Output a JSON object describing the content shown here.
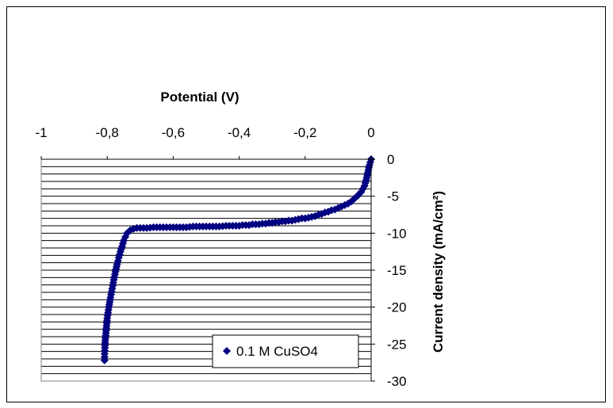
{
  "chart_data": {
    "type": "scatter",
    "title": "",
    "xlabel": "Potential (V)",
    "ylabel": "Current density (mA/cm²)",
    "xlim": [
      -1,
      0
    ],
    "ylim": [
      -30,
      0
    ],
    "x_ticks": [
      "-1",
      "-0,8",
      "-0,6",
      "-0,4",
      "-0,2",
      "0"
    ],
    "y_ticks": [
      "0",
      "-5",
      "-10",
      "-15",
      "-20",
      "-25",
      "-30"
    ],
    "grid": "horizontal",
    "legend_position": "bottom-right",
    "marker_color": "#000080",
    "series": [
      {
        "name": "0.1 M CuSO4",
        "marker": "diamond",
        "points": [
          [
            0.0,
            0.0
          ],
          [
            -0.005,
            -0.8
          ],
          [
            -0.01,
            -1.8
          ],
          [
            -0.015,
            -2.8
          ],
          [
            -0.02,
            -3.6
          ],
          [
            -0.03,
            -4.4
          ],
          [
            -0.04,
            -4.9
          ],
          [
            -0.05,
            -5.3
          ],
          [
            -0.06,
            -5.7
          ],
          [
            -0.07,
            -6.0
          ],
          [
            -0.08,
            -6.2
          ],
          [
            -0.09,
            -6.4
          ],
          [
            -0.1,
            -6.6
          ],
          [
            -0.11,
            -6.8
          ],
          [
            -0.12,
            -6.9
          ],
          [
            -0.13,
            -7.1
          ],
          [
            -0.14,
            -7.2
          ],
          [
            -0.15,
            -7.4
          ],
          [
            -0.16,
            -7.5
          ],
          [
            -0.17,
            -7.7
          ],
          [
            -0.18,
            -7.8
          ],
          [
            -0.19,
            -7.9
          ],
          [
            -0.2,
            -8.0
          ],
          [
            -0.21,
            -8.0
          ],
          [
            -0.22,
            -8.1
          ],
          [
            -0.23,
            -8.2
          ],
          [
            -0.24,
            -8.3
          ],
          [
            -0.25,
            -8.3
          ],
          [
            -0.26,
            -8.4
          ],
          [
            -0.27,
            -8.4
          ],
          [
            -0.28,
            -8.5
          ],
          [
            -0.29,
            -8.5
          ],
          [
            -0.3,
            -8.6
          ],
          [
            -0.31,
            -8.6
          ],
          [
            -0.32,
            -8.7
          ],
          [
            -0.33,
            -8.7
          ],
          [
            -0.34,
            -8.8
          ],
          [
            -0.35,
            -8.8
          ],
          [
            -0.36,
            -8.8
          ],
          [
            -0.37,
            -8.9
          ],
          [
            -0.38,
            -8.9
          ],
          [
            -0.39,
            -8.9
          ],
          [
            -0.4,
            -9.0
          ],
          [
            -0.42,
            -9.0
          ],
          [
            -0.44,
            -9.0
          ],
          [
            -0.46,
            -9.1
          ],
          [
            -0.48,
            -9.1
          ],
          [
            -0.5,
            -9.1
          ],
          [
            -0.52,
            -9.1
          ],
          [
            -0.54,
            -9.1
          ],
          [
            -0.56,
            -9.2
          ],
          [
            -0.58,
            -9.2
          ],
          [
            -0.6,
            -9.2
          ],
          [
            -0.62,
            -9.2
          ],
          [
            -0.64,
            -9.2
          ],
          [
            -0.66,
            -9.2
          ],
          [
            -0.68,
            -9.3
          ],
          [
            -0.7,
            -9.3
          ],
          [
            -0.71,
            -9.3
          ],
          [
            -0.72,
            -9.4
          ],
          [
            -0.73,
            -9.6
          ],
          [
            -0.74,
            -10.0
          ],
          [
            -0.745,
            -10.5
          ],
          [
            -0.75,
            -11.0
          ],
          [
            -0.755,
            -11.8
          ],
          [
            -0.76,
            -12.5
          ],
          [
            -0.765,
            -13.3
          ],
          [
            -0.77,
            -14.2
          ],
          [
            -0.775,
            -15.2
          ],
          [
            -0.78,
            -16.3
          ],
          [
            -0.785,
            -17.5
          ],
          [
            -0.79,
            -18.7
          ],
          [
            -0.795,
            -20.0
          ],
          [
            -0.8,
            -21.5
          ],
          [
            -0.802,
            -22.5
          ],
          [
            -0.804,
            -23.5
          ],
          [
            -0.806,
            -24.5
          ],
          [
            -0.807,
            -25.5
          ],
          [
            -0.808,
            -26.3
          ],
          [
            -0.808,
            -27.2
          ]
        ]
      }
    ]
  }
}
